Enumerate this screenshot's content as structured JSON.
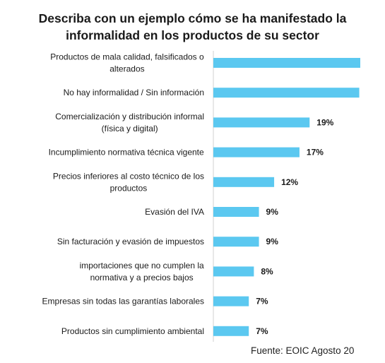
{
  "chart_data": {
    "type": "bar",
    "orientation": "horizontal",
    "title_lines": [
      "Describa con un ejemplo cómo se ha manifestado la",
      "informalidad en los productos de su sector"
    ],
    "categories": [
      [
        "Productos de mala calidad, falsificados o",
        "alterados"
      ],
      [
        "No hay informalidad / Sin información"
      ],
      [
        "Comercialización y distribución informal",
        "(física y digital)"
      ],
      [
        "Incumplimiento normativa técnica vigente"
      ],
      [
        "Precios inferiores al costo técnico de los",
        "productos"
      ],
      [
        "Evasión del IVA"
      ],
      [
        "Sin facturación y evasión de impuestos"
      ],
      [
        "importaciones que no cumplen la",
        "normativa y a precios bajos"
      ],
      [
        "Empresas sin todas las garantías laborales"
      ],
      [
        "Productos sin cumplimiento ambiental"
      ]
    ],
    "values": [
      29,
      28.8,
      19,
      17,
      12,
      9,
      9,
      8,
      7,
      7
    ],
    "value_labels": [
      "",
      "",
      "19%",
      "17%",
      "12%",
      "9%",
      "9%",
      "8%",
      "7%",
      "7%"
    ],
    "bar_color": "#5BC8F0",
    "grid": false,
    "legend": "none"
  },
  "source": "Fuente: EOIC Agosto 20"
}
